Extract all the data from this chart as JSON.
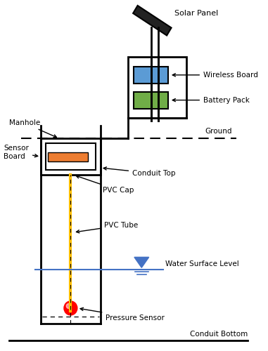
{
  "labels": {
    "solar_panel": "Solar Panel",
    "wireless_board": "Wireless Board",
    "battery_pack": "Battery Pack",
    "ground": "Ground",
    "manhole": "Manhole",
    "sensor_board": "Sensor\nBoard",
    "conduit_top": "Conduit Top",
    "pvc_cap": "PVC Cap",
    "pvc_tube": "PVC Tube",
    "water_surface": "Water Surface Level",
    "pressure_sensor": "Pressure Sensor",
    "conduit_bottom": "Conduit Bottom"
  },
  "colors": {
    "wireless_board_fill": "#5b9bd5",
    "battery_pack_fill": "#70ad47",
    "sensor_board_fill": "#ed7d31",
    "water_line": "#4472c4",
    "pvc_tube_line": "#ffc000",
    "black": "#000000",
    "white": "#ffffff",
    "pressure_sensor_fill": "#ff0000",
    "panel_fill": "#222222"
  }
}
